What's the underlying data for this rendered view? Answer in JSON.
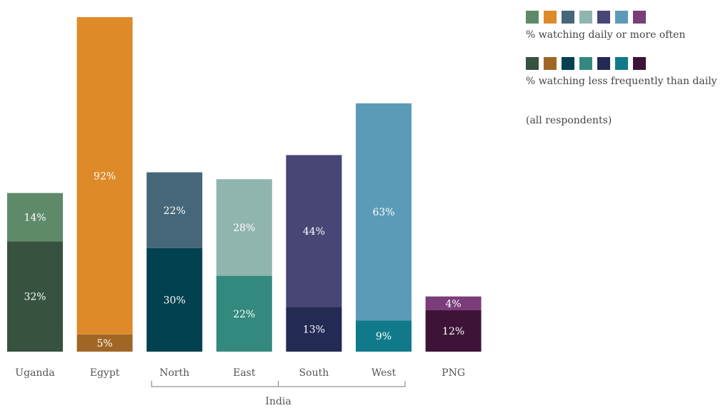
{
  "chart_data": {
    "type": "bar",
    "stacked": true,
    "categories": [
      "Uganda",
      "Egypt",
      "North",
      "East",
      "South",
      "West",
      "PNG"
    ],
    "group_labels": [
      {
        "label": "India",
        "categories": [
          "North",
          "East",
          "South",
          "West"
        ]
      }
    ],
    "series": [
      {
        "name": "% watching less frequently than daily",
        "values": [
          32,
          5,
          30,
          22,
          13,
          9,
          12
        ],
        "labels": [
          "32%",
          "5%",
          "30%",
          "22%",
          "13%",
          "9%",
          "12%"
        ],
        "colors": [
          "#37523f",
          "#a06626",
          "#02414f",
          "#33897e",
          "#232a54",
          "#107a8a",
          "#3d1437"
        ]
      },
      {
        "name": "% watching daily or more often",
        "values": [
          14,
          92,
          22,
          28,
          44,
          63,
          4
        ],
        "labels": [
          "14%",
          "92%",
          "22%",
          "28%",
          "44%",
          "63%",
          "4%"
        ],
        "colors": [
          "#5f8a6a",
          "#dd8a28",
          "#46677a",
          "#90b4ae",
          "#474676",
          "#5b9bb8",
          "#7a3d7a"
        ]
      }
    ],
    "note": "(all respondents)",
    "ylim": [
      0,
      97
    ],
    "grid": false,
    "legend_position": "top-right"
  }
}
